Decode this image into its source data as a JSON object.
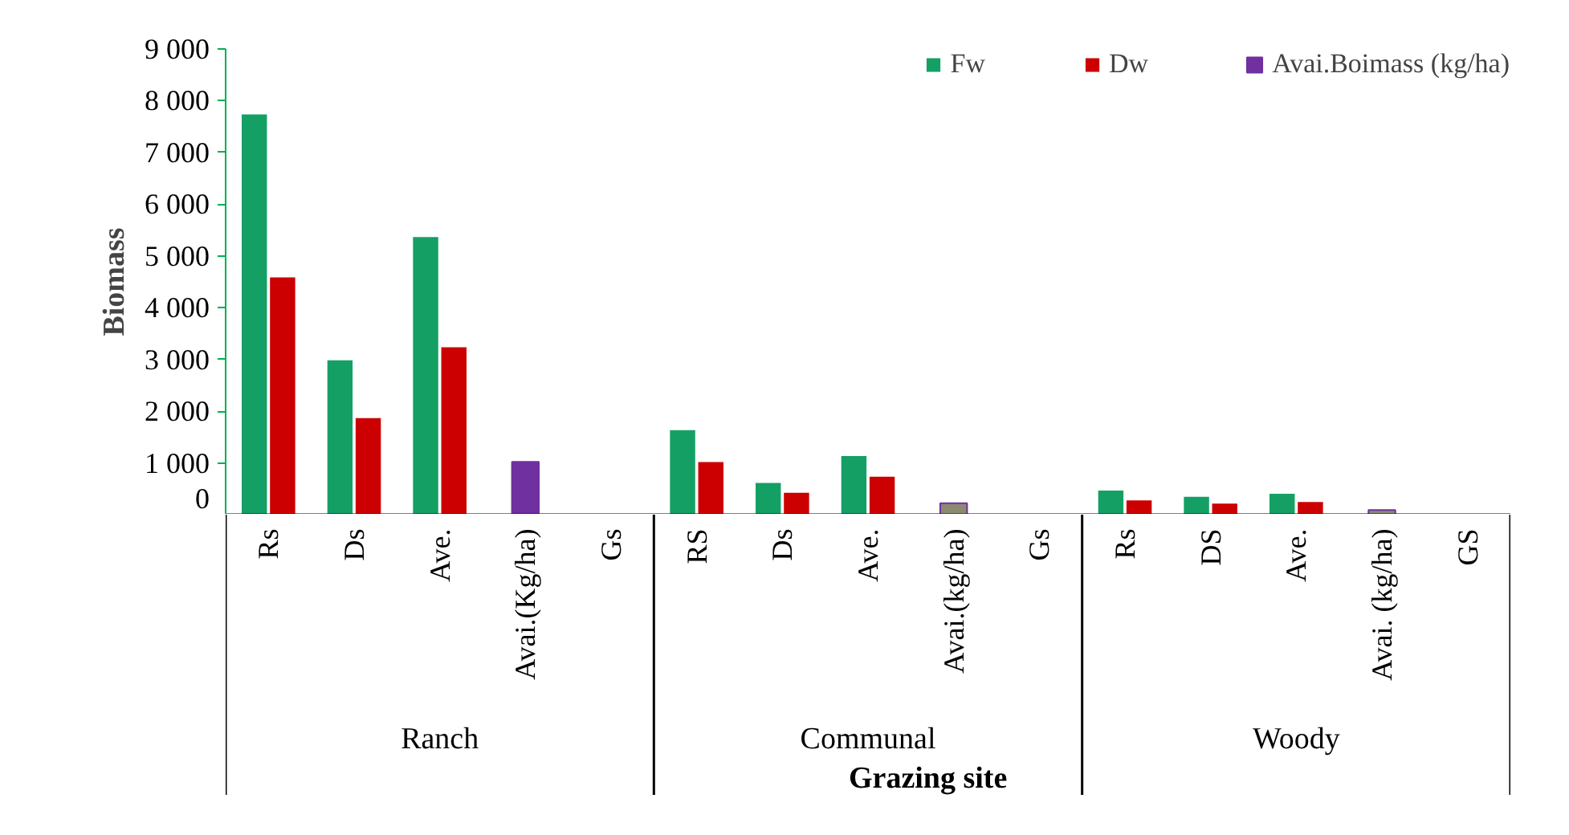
{
  "chart_data": {
    "type": "bar",
    "ylabel": "Biomass",
    "xlabel": "Grazing site",
    "categories": [
      "Rs",
      "Ds",
      "Ave.",
      "Avai.(Kg/ha)",
      "Gs",
      "RS",
      "Ds",
      "Ave.",
      "Avai.(kg/ha)",
      "Gs",
      "Rs",
      "DS",
      "Ave.",
      "Avai. (kg/ha)",
      "GS"
    ],
    "annotations": [
      "Ranch",
      "Communal",
      "Woody"
    ],
    "series": [
      {
        "name": "Fw",
        "color": "#14a064",
        "values": [
          7750,
          3000,
          5380,
          null,
          null,
          1650,
          630,
          1150,
          null,
          null,
          480,
          360,
          420,
          null,
          null
        ]
      },
      {
        "name": "Dw",
        "color": "#cc0000",
        "values": [
          4600,
          1880,
          3250,
          null,
          null,
          1030,
          440,
          750,
          null,
          null,
          290,
          230,
          260,
          null,
          null
        ]
      },
      {
        "name": "Avai.Boimass (kg/ha)",
        "color": "#8c8a70",
        "colors": [
          null,
          null,
          null,
          "#7030a0",
          null,
          null,
          null,
          null,
          null,
          null,
          null,
          null,
          null,
          null,
          null
        ],
        "values": [
          null,
          null,
          null,
          1020,
          null,
          null,
          null,
          null,
          220,
          null,
          null,
          null,
          null,
          90,
          null
        ]
      }
    ],
    "ylim": [
      0,
      9000
    ],
    "yticks": [
      0,
      {
        "value": 1000,
        "label": "1 000"
      },
      {
        "value": 2000,
        "label": "2 000"
      },
      {
        "value": 3000,
        "label": "3 000"
      },
      {
        "value": 4000,
        "label": "4 000"
      },
      {
        "value": 5000,
        "label": "5 000"
      },
      {
        "value": 6000,
        "label": "6 000"
      },
      {
        "value": 7000,
        "label": "7 000"
      },
      {
        "value": 8000,
        "label": "8 000"
      },
      {
        "value": 9000,
        "label": "9 000"
      }
    ],
    "grid": false,
    "legend": "top"
  }
}
